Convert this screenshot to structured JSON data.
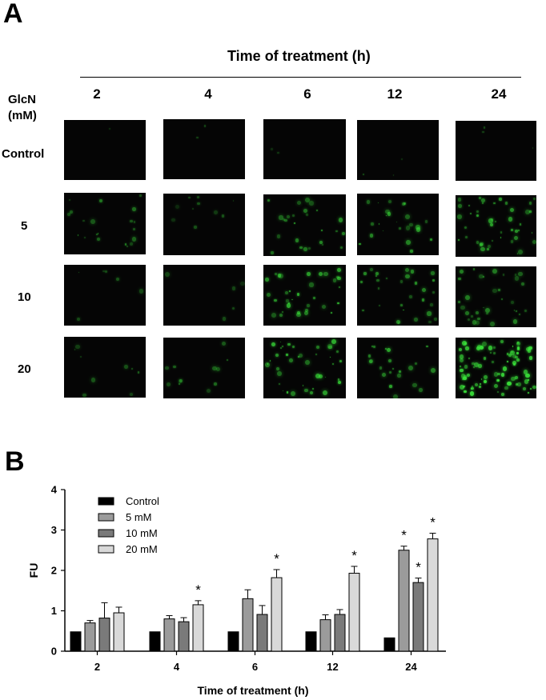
{
  "figure": {
    "panel_a_label": "A",
    "panel_b_label": "B",
    "header_title": "Time of treatment (h)",
    "dose_header_line1": "GlcN",
    "dose_header_line2": "(mM)",
    "time_points": [
      "2",
      "4",
      "6",
      "12",
      "24"
    ],
    "doses": [
      "Control",
      "5",
      "10",
      "20"
    ],
    "fluorescence_color": "#3be53b"
  },
  "chart_data": {
    "type": "bar",
    "categories": [
      "2",
      "4",
      "6",
      "12",
      "24"
    ],
    "series": [
      {
        "name": "Control",
        "color": "#000000",
        "values": [
          0.48,
          0.48,
          0.48,
          0.48,
          0.33
        ],
        "errors": [
          0,
          0,
          0,
          0,
          0
        ],
        "significant": [
          false,
          false,
          false,
          false,
          false
        ]
      },
      {
        "name": "5 mM",
        "color": "#9b9b9b",
        "values": [
          0.7,
          0.8,
          1.3,
          0.78,
          2.5
        ],
        "errors": [
          0.06,
          0.08,
          0.22,
          0.12,
          0.1
        ],
        "significant": [
          false,
          false,
          false,
          false,
          true
        ]
      },
      {
        "name": "10 mM",
        "color": "#7a7a7a",
        "values": [
          0.82,
          0.73,
          0.91,
          0.91,
          1.7
        ],
        "errors": [
          0.38,
          0.1,
          0.22,
          0.12,
          0.11
        ],
        "significant": [
          false,
          false,
          false,
          false,
          true
        ]
      },
      {
        "name": "20 mM",
        "color": "#d9d9d9",
        "values": [
          0.95,
          1.15,
          1.82,
          1.93,
          2.78
        ],
        "errors": [
          0.14,
          0.1,
          0.2,
          0.17,
          0.14
        ],
        "significant": [
          false,
          true,
          true,
          true,
          true
        ]
      }
    ],
    "significance_marker": "*",
    "xlabel": "Time of treatment (h)",
    "ylabel": "FU",
    "ylim": [
      0,
      4
    ],
    "yticks": [
      "0",
      "1",
      "2",
      "3",
      "4"
    ],
    "grid": false,
    "legend_position": "top-left"
  }
}
